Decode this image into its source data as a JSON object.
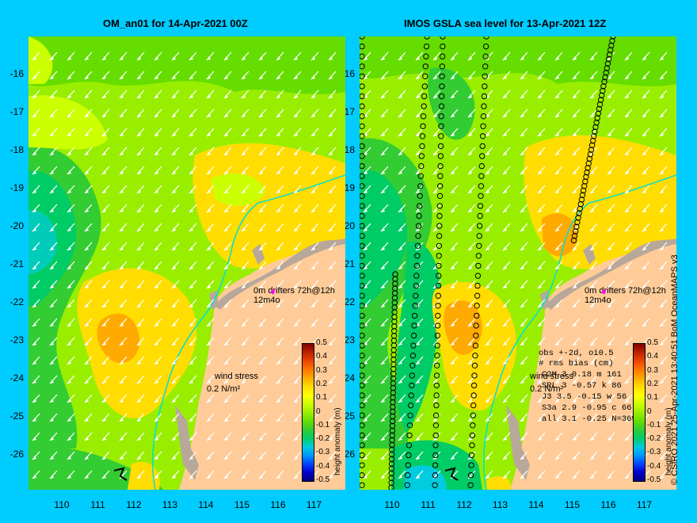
{
  "left_panel": {
    "title": "OM_an01 for 14-Apr-2021 00Z",
    "wind_label_1": "wind stress",
    "wind_label_2": "0.2 N/m²",
    "drifter_label": "0m  drifters 72h@12h",
    "drifter_label_2": "12m4o"
  },
  "right_panel": {
    "title": "IMOS GSLA sea level  for 13-Apr-2021 12Z",
    "wind_label_1": "wind stress",
    "wind_label_2": "0.2 N/m²",
    "drifter_label": "0m  drifters 72h@12h",
    "drifter_label_2": "12m4o",
    "obs_header": "obs +-2d, oi0.5",
    "bias_header": "# rms bias (cm)",
    "obs_rows": [
      "C2M    3  0.18  m 161",
      "SRL    3 -0.57  k 86",
      "J3     3.5 -0.15  w 56",
      "S3a    2.9 -0.95  c 66",
      "all    3.1 -0.25  N=369"
    ]
  },
  "y_ticks": [
    "-16",
    "-17",
    "-18",
    "-19",
    "-20",
    "-21",
    "-22",
    "-23",
    "-24",
    "-25",
    "-26"
  ],
  "x_ticks": [
    "110",
    "111",
    "112",
    "113",
    "114",
    "115",
    "116",
    "117"
  ],
  "colorbar": {
    "label": "height anomaly (m)",
    "ticks": [
      "0.5",
      "0.4",
      "0.3",
      "0.2",
      "0.1",
      "0",
      "-0.1",
      "-0.2",
      "-0.3",
      "-0.4",
      "-0.5"
    ],
    "colors": [
      "#000080",
      "#0000cc",
      "#0044ff",
      "#0099ff",
      "#00ccdd",
      "#00cc66",
      "#33cc33",
      "#66dd00",
      "#99ee00",
      "#ccff00",
      "#ffff00",
      "#ffdd00",
      "#ffaa00",
      "#ff7700",
      "#ee4400",
      "#bb2200",
      "#800000"
    ]
  },
  "credit": "© CSIRO 2021   25-Apr-2021 13:40:51 BoM OceanMAPS v3",
  "colors": {
    "background": "#00ccff",
    "land": "#ffcc99",
    "island": "#b8a89a",
    "isobath": "#00e0d0",
    "arrow": "#ffffff",
    "drifter": "#ff00ff"
  }
}
